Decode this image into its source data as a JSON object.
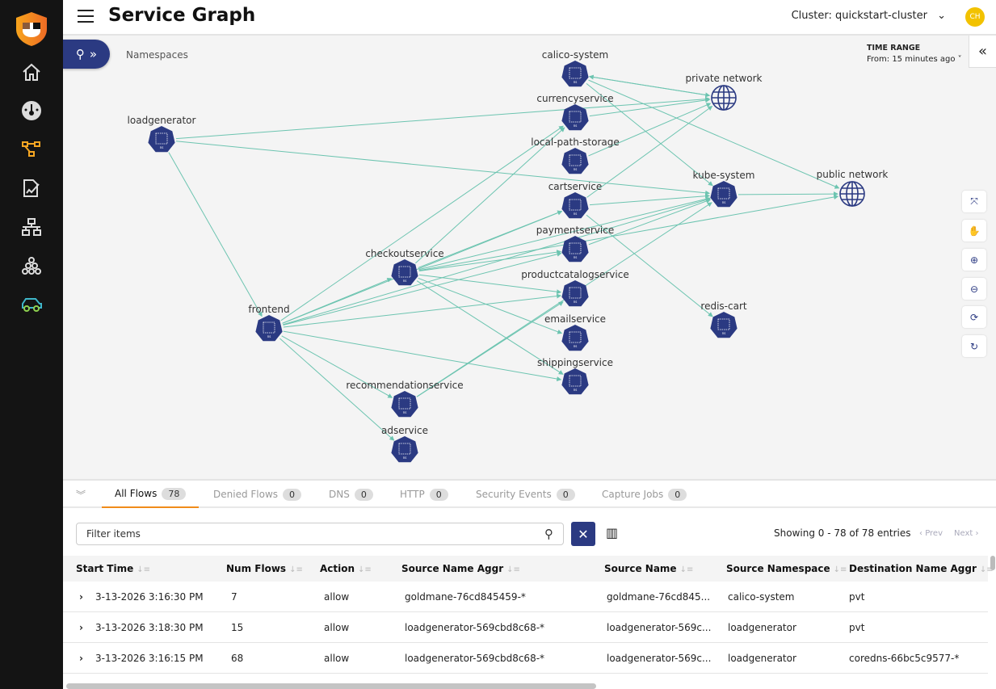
{
  "header": {
    "title": "Service Graph",
    "cluster": "Cluster: quickstart-cluster",
    "avatar": "CH"
  },
  "sidebar": {
    "items": [
      "home-icon",
      "dashboard-icon",
      "service-graph-icon",
      "policies-icon",
      "network-icon",
      "endpoints-icon",
      "car-icon"
    ],
    "active": "service-graph-icon",
    "accent": "#f5a623"
  },
  "graph": {
    "namespaces_label": "Namespaces",
    "time_range": {
      "label": "TIME RANGE",
      "value": "From: 15 minutes ago"
    },
    "edge_color": "#6cc4b0",
    "node_color": "#2b3a82",
    "nodes": [
      {
        "id": "calico-system",
        "type": "namespace"
      },
      {
        "id": "currencyservice",
        "type": "namespace"
      },
      {
        "id": "local-path-storage",
        "type": "namespace"
      },
      {
        "id": "cartservice",
        "type": "namespace"
      },
      {
        "id": "paymentservice",
        "type": "namespace"
      },
      {
        "id": "productcatalogservice",
        "type": "namespace"
      },
      {
        "id": "emailservice",
        "type": "namespace"
      },
      {
        "id": "shippingservice",
        "type": "namespace"
      },
      {
        "id": "loadgenerator",
        "type": "namespace"
      },
      {
        "id": "checkoutservice",
        "type": "namespace"
      },
      {
        "id": "frontend",
        "type": "namespace"
      },
      {
        "id": "recommendationservice",
        "type": "namespace"
      },
      {
        "id": "adservice",
        "type": "namespace"
      },
      {
        "id": "kube-system",
        "type": "namespace"
      },
      {
        "id": "redis-cart",
        "type": "namespace"
      },
      {
        "id": "private network",
        "type": "network"
      },
      {
        "id": "public network",
        "type": "network"
      }
    ],
    "edges": [
      [
        "loadgenerator",
        "private network"
      ],
      [
        "loadgenerator",
        "kube-system"
      ],
      [
        "loadgenerator",
        "frontend"
      ],
      [
        "calico-system",
        "private network"
      ],
      [
        "private network",
        "calico-system"
      ],
      [
        "calico-system",
        "kube-system"
      ],
      [
        "calico-system",
        "public network"
      ],
      [
        "currencyservice",
        "private network"
      ],
      [
        "local-path-storage",
        "private network"
      ],
      [
        "cartservice",
        "private network"
      ],
      [
        "frontend",
        "currencyservice"
      ],
      [
        "frontend",
        "cartservice"
      ],
      [
        "frontend",
        "paymentservice"
      ],
      [
        "frontend",
        "productcatalogservice"
      ],
      [
        "frontend",
        "checkoutservice"
      ],
      [
        "frontend",
        "shippingservice"
      ],
      [
        "frontend",
        "recommendationservice"
      ],
      [
        "frontend",
        "adservice"
      ],
      [
        "frontend",
        "kube-system"
      ],
      [
        "checkoutservice",
        "currencyservice"
      ],
      [
        "checkoutservice",
        "cartservice"
      ],
      [
        "checkoutservice",
        "paymentservice"
      ],
      [
        "checkoutservice",
        "productcatalogservice"
      ],
      [
        "checkoutservice",
        "emailservice"
      ],
      [
        "checkoutservice",
        "shippingservice"
      ],
      [
        "checkoutservice",
        "kube-system"
      ],
      [
        "checkoutservice",
        "public network"
      ],
      [
        "recommendationservice",
        "productcatalogservice"
      ],
      [
        "recommendationservice",
        "kube-system"
      ],
      [
        "cartservice",
        "redis-cart"
      ],
      [
        "cartservice",
        "kube-system"
      ],
      [
        "kube-system",
        "public network"
      ],
      [
        "paymentservice",
        "kube-system"
      ]
    ],
    "controls": [
      "fit-icon",
      "pan-icon",
      "zoom-in-icon",
      "zoom-out-icon",
      "reset-icon",
      "refresh-icon"
    ]
  },
  "tabs": [
    {
      "label": "All Flows",
      "count": "78"
    },
    {
      "label": "Denied Flows",
      "count": "0"
    },
    {
      "label": "DNS",
      "count": "0"
    },
    {
      "label": "HTTP",
      "count": "0"
    },
    {
      "label": "Security Events",
      "count": "0"
    },
    {
      "label": "Capture Jobs",
      "count": "0"
    }
  ],
  "filter": {
    "placeholder": "Filter items"
  },
  "pagination": {
    "showing": "Showing 0 - 78 of 78 entries",
    "prev": "Prev",
    "next": "Next"
  },
  "table": {
    "columns": [
      "Start Time",
      "Num Flows",
      "Action",
      "Source Name Aggr",
      "Source Name",
      "Source Namespace",
      "Destination Name Aggr"
    ],
    "rows": [
      [
        "3-13-2026 3:16:30 PM",
        "7",
        "allow",
        "goldmane-76cd845459-*",
        "goldmane-76cd845...",
        "calico-system",
        "pvt"
      ],
      [
        "3-13-2026 3:18:30 PM",
        "15",
        "allow",
        "loadgenerator-569cbd8c68-*",
        "loadgenerator-569c...",
        "loadgenerator",
        "pvt"
      ],
      [
        "3-13-2026 3:16:15 PM",
        "68",
        "allow",
        "loadgenerator-569cbd8c68-*",
        "loadgenerator-569c...",
        "loadgenerator",
        "coredns-66bc5c9577-*"
      ]
    ]
  }
}
